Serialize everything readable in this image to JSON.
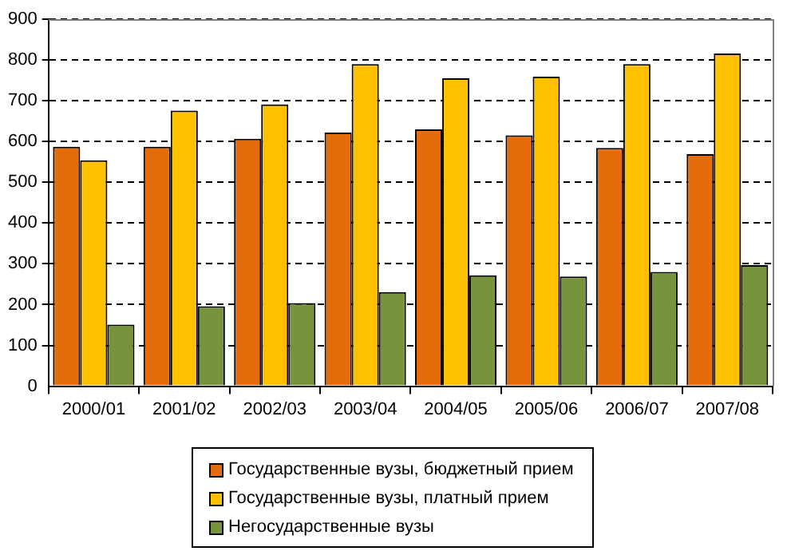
{
  "chart_data": {
    "type": "bar",
    "categories": [
      "2000/01",
      "2001/02",
      "2002/03",
      "2003/04",
      "2004/05",
      "2005/06",
      "2006/07",
      "2007/08"
    ],
    "series": [
      {
        "name": "Государственные вузы, бюджетный прием",
        "color": "#e46c0a",
        "values": [
          587,
          587,
          607,
          622,
          630,
          615,
          584,
          569
        ]
      },
      {
        "name": "Государственные вузы, платный прием",
        "color": "#ffc000",
        "values": [
          554,
          676,
          691,
          790,
          755,
          759,
          790,
          816
        ]
      },
      {
        "name": "Негосударственные вузы",
        "color": "#77933c",
        "values": [
          151,
          196,
          204,
          231,
          272,
          269,
          280,
          297
        ]
      }
    ],
    "ylim": [
      0,
      900
    ],
    "yticks": [
      0,
      100,
      200,
      300,
      400,
      500,
      600,
      700,
      800,
      900
    ],
    "grid": "y",
    "legend": "bottom"
  }
}
